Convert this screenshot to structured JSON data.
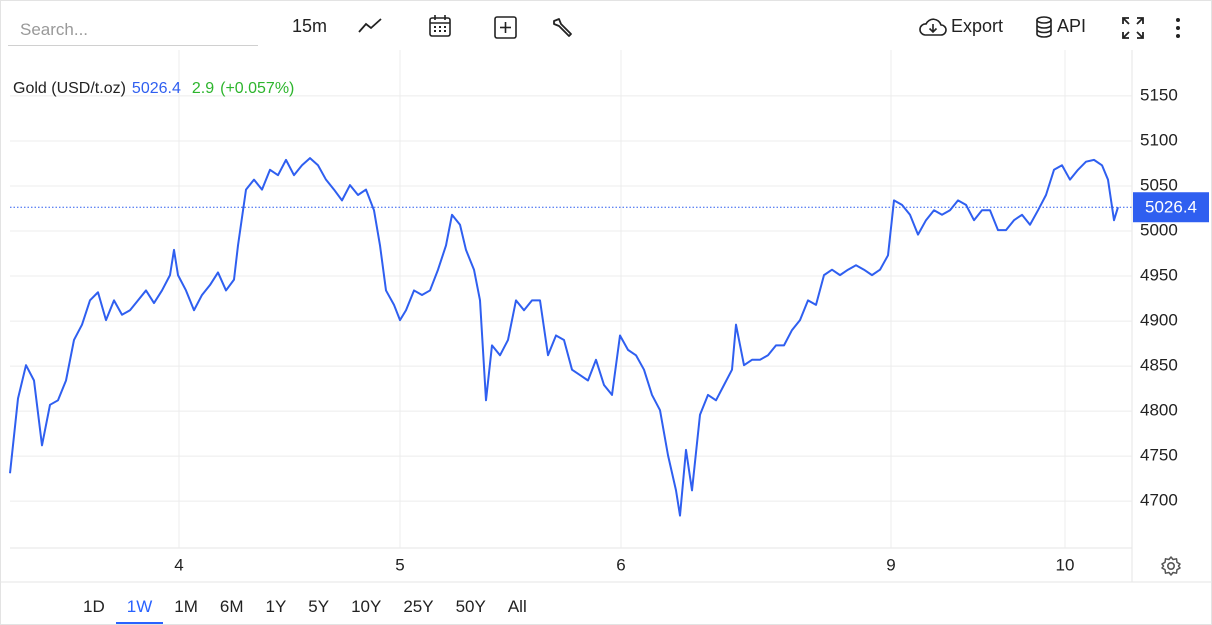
{
  "toolbar": {
    "search_placeholder": "Search...",
    "interval": "15m",
    "export": "Export",
    "api": "API"
  },
  "chart_data": {
    "type": "line",
    "price": 5026.4,
    "change": 2.9,
    "change_percent": "(+0.057%)",
    "x": [
      0,
      1,
      2,
      3,
      4,
      5,
      6,
      7,
      8,
      9,
      10,
      11,
      12,
      13,
      14,
      15,
      16,
      17,
      18,
      19,
      20,
      20.5,
      21,
      22,
      23,
      24,
      25,
      26,
      27,
      28,
      28.5,
      29.5,
      30.5,
      31.5,
      32.5,
      33.5,
      34.5,
      35.5,
      36.5,
      37.5,
      38.5,
      39.5,
      40.5,
      41.5,
      42.5,
      43.5,
      44.5,
      45.5,
      46.25,
      47,
      48,
      48.75,
      49.5,
      50.5,
      51.5,
      52.5,
      53.5,
      54.5,
      55.25,
      56.25,
      57,
      58,
      58.75,
      59.5,
      60.25,
      61.25,
      62.25,
      63.25,
      64.25,
      65.25,
      66.25,
      67.25,
      68.25,
      69.25,
      70.25,
      71.25,
      72.25,
      73.25,
      74.25,
      75.25,
      76.25,
      77.25,
      78.25,
      79.25,
      80.25,
      81.25,
      82.25,
      83.25,
      83.75,
      84.5,
      85.25,
      86.25,
      87.25,
      88.25,
      89.25,
      90.25,
      90.75,
      91.75,
      92.75,
      93.75,
      94.75,
      95.75,
      96.75,
      97.75,
      98.75,
      99.75,
      100.75,
      101.75,
      102.75,
      103.75,
      104.75,
      105.75,
      106.75,
      107.75,
      108.75,
      109.75,
      110.5,
      111.5,
      112.5,
      113.5,
      114.5,
      115.5,
      116.5,
      117.5,
      118.5,
      119.5,
      120.5,
      121.5,
      122.5,
      123.5,
      124.5,
      125.5,
      126.5,
      127.5,
      128.5,
      129.5,
      130.5,
      131.5,
      132.5,
      133.5,
      134.5,
      135.5,
      136.5,
      137.25,
      138,
      138.5
    ],
    "series": [
      {
        "name": "Gold (USD/t.oz)",
        "color": "#2f5ff0",
        "values": [
          4731,
          4814,
          4851,
          4834,
          4762,
          4807,
          4812,
          4834,
          4879,
          4896,
          4923,
          4932,
          4901,
          4923,
          4907,
          4912,
          4923,
          4934,
          4920,
          4934,
          4951,
          4979,
          4951,
          4934,
          4912,
          4929,
          4940,
          4954,
          4934,
          4946,
          4984,
          5046,
          5057,
          5046,
          5068,
          5062,
          5079,
          5062,
          5073,
          5081,
          5073,
          5057,
          5046,
          5034,
          5051,
          5040,
          5046,
          5023,
          4984,
          4934,
          4918,
          4901,
          4912,
          4934,
          4929,
          4934,
          4957,
          4984,
          5018,
          5007,
          4979,
          4957,
          4923,
          4812,
          4873,
          4862,
          4879,
          4923,
          4912,
          4923,
          4923,
          4862,
          4884,
          4879,
          4846,
          4840,
          4834,
          4857,
          4829,
          4818,
          4884,
          4868,
          4862,
          4846,
          4818,
          4801,
          4751,
          4712,
          4684,
          4757,
          4712,
          4796,
          4818,
          4812,
          4829,
          4846,
          4896,
          4851,
          4857,
          4857,
          4862,
          4873,
          4873,
          4890,
          4901,
          4923,
          4918,
          4951,
          4957,
          4951,
          4957,
          4962,
          4957,
          4951,
          4957,
          4973,
          5034,
          5029,
          5018,
          4996,
          5012,
          5023,
          5018,
          5023,
          5034,
          5029,
          5012,
          5023,
          5023,
          5001,
          5001,
          5012,
          5018,
          5007,
          5023,
          5040,
          5068,
          5073,
          5057,
          5068,
          5077,
          5079,
          5073,
          5057,
          5012,
          5026.4
        ]
      }
    ],
    "xlim": [
      0,
      140.25
    ],
    "xticks": [
      {
        "value": 21.125,
        "label": "4"
      },
      {
        "value": 48.75,
        "label": "5"
      },
      {
        "value": 76.375,
        "label": "6"
      },
      {
        "value": 110.125,
        "label": "9"
      },
      {
        "value": 131.875,
        "label": "10"
      }
    ],
    "ylim": [
      4648,
      5201
    ],
    "yticks": [
      4700,
      4750,
      4800,
      4850,
      4900,
      4950,
      5000,
      5050,
      5100,
      5150
    ],
    "grid": true
  },
  "range_buttons": {
    "items": [
      "1D",
      "1W",
      "1M",
      "6M",
      "1Y",
      "5Y",
      "10Y",
      "25Y",
      "50Y",
      "All"
    ],
    "selected_index": 1
  }
}
